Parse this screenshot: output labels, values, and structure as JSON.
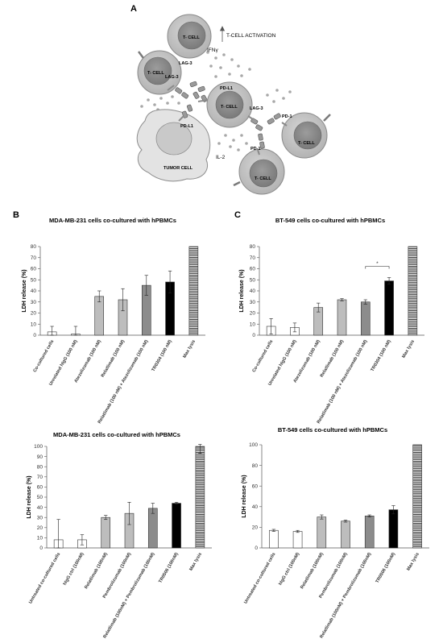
{
  "figure": {
    "panel_labels": [
      "A",
      "B",
      "C"
    ],
    "diagram": {
      "labels": {
        "t_cell": "T- CELL",
        "t_cell_activation": "T-CELL ACTIVATION",
        "ifn": "IFNγ",
        "lag3": "LAG-3",
        "pdl1": "PD-L1",
        "pd1": "PD-1",
        "il2": "IL-2",
        "tumor_cell": "TUMOR CELL"
      },
      "colors": {
        "cell_outer": "#c8c8c8",
        "cell_nucleus": "#8f8f8f",
        "tumor": "#e3e3e3",
        "tumor_nucleus": "#c9c9c9"
      }
    }
  },
  "chart_data": [
    {
      "type": "bar",
      "panel": "B",
      "title": "MDA-MB-231 cells co-cultured with hPBMCs",
      "ylabel": "LDH release (%)",
      "xlabel": "",
      "ylim": [
        0,
        80
      ],
      "yticks": [
        0,
        10,
        20,
        30,
        40,
        50,
        60,
        70,
        80
      ],
      "categories": [
        "Co-cultured cells",
        "Unrelated hIgG (100 nM)",
        "Atezolizumab (100 nM)",
        "Relatlimab (100 nM)",
        "Relatlimab (100 nM) + Atezolizumab (100 nM)",
        "TR0304 (100 nM)",
        "Max lysis"
      ],
      "values": [
        3,
        1,
        35,
        32,
        45,
        48,
        80
      ],
      "errors": [
        5,
        7,
        5,
        10,
        9,
        10,
        0
      ],
      "bar_styles": [
        "white",
        "white",
        "lightgray",
        "lightgray",
        "gray",
        "black",
        "hatched"
      ],
      "grid": false
    },
    {
      "type": "bar",
      "panel": "C",
      "title": "BT-549 cells co-cultured with hPBMCs",
      "ylabel": "LDH release (%)",
      "xlabel": "",
      "ylim": [
        0,
        80
      ],
      "yticks": [
        0,
        10,
        20,
        30,
        40,
        50,
        60,
        70,
        80
      ],
      "categories": [
        "Co-cultured cells",
        "Unrelated hIgG (100 nM)",
        "Atezolizumab (100 nM)",
        "Relatlimab (100 nM)",
        "Relatlimab (100 nM) + Atezolizumab (100 nM)",
        "TR0304 (100 nM)",
        "Max lysis"
      ],
      "values": [
        8,
        7,
        25,
        32,
        30,
        49,
        80
      ],
      "errors": [
        7,
        4,
        4,
        1,
        2,
        3,
        0
      ],
      "bar_styles": [
        "white",
        "white",
        "lightgray",
        "lightgray",
        "gray",
        "black",
        "hatched"
      ],
      "significance": {
        "from": 4,
        "to": 5,
        "label": "*"
      },
      "grid": false
    },
    {
      "type": "bar",
      "panel": "",
      "title": "MDA-MB-231 cells co-cultured with hPBMCs",
      "ylabel": "LDH release (%)",
      "xlabel": "",
      "ylim": [
        0,
        100
      ],
      "yticks": [
        0,
        10,
        20,
        30,
        40,
        50,
        60,
        70,
        80,
        90,
        100
      ],
      "categories": [
        "Untreated co-cultured cells",
        "hIgG ctrl (100nM)",
        "Relatlimab (100nM)",
        "Pembrolizumab (100nM)",
        "Relatlimab (100nM) + Pembrolizumab (100nM)",
        "TR0506 (100nM)",
        "Max lysis"
      ],
      "values": [
        8,
        8,
        30,
        34,
        39,
        44,
        100
      ],
      "errors": [
        20,
        5,
        2,
        11,
        5,
        1,
        7
      ],
      "bar_styles": [
        "white",
        "white",
        "lightgray",
        "lightgray",
        "gray",
        "black",
        "hatched"
      ],
      "grid": false
    },
    {
      "type": "bar",
      "panel": "",
      "title": "BT-549 cells co-cultured with hPBMCs",
      "ylabel": "LDH release (%)",
      "xlabel": "",
      "ylim": [
        0,
        100
      ],
      "yticks": [
        0,
        20,
        40,
        60,
        80,
        100
      ],
      "categories": [
        "Untreated co-cultured cells",
        "hIgG ctrl (100nM)",
        "Relatlimab (100nM)",
        "Pembrolizumab (100nM)",
        "Relatlimab (100nM) + Pembrolizumab (100nM)",
        "TR0506 (100nM)",
        "Max lysis"
      ],
      "values": [
        17,
        16,
        30,
        26,
        31,
        37,
        100
      ],
      "errors": [
        1,
        1,
        2,
        1,
        1,
        4,
        0
      ],
      "bar_styles": [
        "white",
        "white",
        "lightgray",
        "lightgray",
        "gray",
        "black",
        "hatched"
      ],
      "grid": false
    }
  ]
}
